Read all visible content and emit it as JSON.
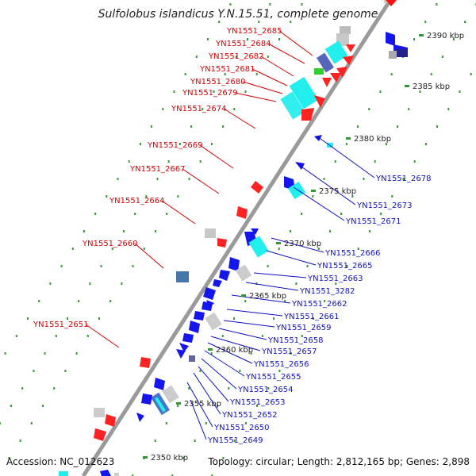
{
  "title": "Sulfolobus islandicus Y.N.15.51, complete genome",
  "accession": "Accession: NC_012623",
  "topology": "Topology: circular; Length: 2,812,165 bp; Genes: 2,898",
  "colors": {
    "backbone": "#999999",
    "tick": "#339933",
    "forward_label": "#d40000",
    "reverse_label": "#1010c0",
    "forward_gene": "#ff0000",
    "reverse_gene": "#1111ee",
    "cyan_gene": "#22eeee",
    "grey_gene": "#cccccc",
    "steel_gene": "#4477aa",
    "navy_gene": "#222288",
    "green_gene": "#33cc33"
  },
  "scale_labels": [
    "2390 kbp",
    "2385 kbp",
    "2380 kbp",
    "2375 kbp",
    "2370 kbp",
    "2365 kbp",
    "2360 kbp",
    "2355 kbp",
    "2350 kbp"
  ],
  "left_labels": [
    "YN1551_2685",
    "YN1551_2684",
    "YN1551_2682",
    "YN1551_2681",
    "YN1551_2680",
    "YN1551_2679",
    "YN1551_2674",
    "YN1551_2669",
    "YN1551_2667",
    "YN1551_2664",
    "YN1551_2660",
    "YN1551_2651"
  ],
  "right_labels": [
    "YN1551_2678",
    "YN1551_2673",
    "YN1551_2671",
    "YN1551_2666",
    "YN1551_2665",
    "YN1551_2663",
    "YN1551_3282",
    "YN1551_2662",
    "YN1551_2661",
    "YN1551_2659",
    "YN1551_2658",
    "YN1551_2657",
    "YN1551_2656",
    "YN1551_2655",
    "YN1551_2654",
    "YN1551_2653",
    "YN1551_2652",
    "YN1551_2650",
    "YN1551_2649"
  ]
}
